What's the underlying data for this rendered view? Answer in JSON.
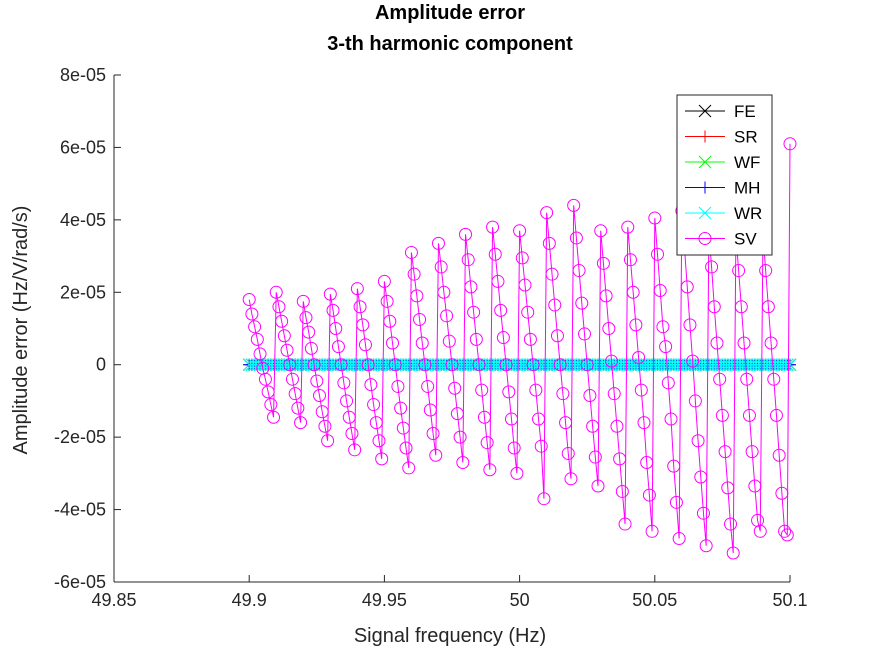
{
  "colors": {
    "FE": "#000000",
    "SR": "#ff0000",
    "WF": "#00ff00",
    "MH": "#0000ff",
    "WR": "#00ffff",
    "SV": "#ff00ff",
    "axis": "#262626",
    "background": "#ffffff"
  },
  "chart_data": {
    "type": "line",
    "title": "Amplitude error",
    "subtitle": "3-th harmonic component",
    "xlabel": "Signal frequency (Hz)",
    "ylabel": "Amplitude error (Hz/V/rad/s)",
    "xlim": [
      49.85,
      50.1
    ],
    "ylim": [
      -6e-05,
      8e-05
    ],
    "xticks": [
      "49.85",
      "49.9",
      "49.95",
      "50",
      "50.05",
      "50.1"
    ],
    "yticks": [
      "-6e-05",
      "-4e-05",
      "-2e-05",
      "0",
      "2e-05",
      "4e-05",
      "6e-05",
      "8e-05"
    ],
    "grid": false,
    "legend_position": "top-right",
    "x_range": {
      "start": 49.9,
      "end": 50.1,
      "step": 0.001
    },
    "series": [
      {
        "name": "FE",
        "marker": "x",
        "values": [
          0
        ]
      },
      {
        "name": "SR",
        "marker": "+",
        "values": [
          0
        ]
      },
      {
        "name": "WF",
        "marker": "x",
        "values": [
          0
        ]
      },
      {
        "name": "MH",
        "marker": "+",
        "values": [
          0
        ]
      },
      {
        "name": "WR",
        "marker": "x",
        "values": [
          0
        ]
      },
      {
        "name": "SV",
        "marker": "o",
        "values": [
          1.8e-05,
          1.4e-05,
          1.05e-05,
          7e-06,
          3e-06,
          -1e-06,
          -4e-06,
          -7.5e-06,
          -1.1e-05,
          -1.45e-05,
          2e-05,
          1.6e-05,
          1.2e-05,
          8e-06,
          4e-06,
          0,
          -4e-06,
          -8e-06,
          -1.2e-05,
          -1.6e-05,
          1.75e-05,
          1.3e-05,
          9e-06,
          4.5e-06,
          0,
          -4.5e-06,
          -8.5e-06,
          -1.3e-05,
          -1.7e-05,
          -2.1e-05,
          1.95e-05,
          1.5e-05,
          1e-05,
          5e-06,
          0,
          -5e-06,
          -1e-05,
          -1.45e-05,
          -1.9e-05,
          -2.35e-05,
          2.1e-05,
          1.6e-05,
          1.1e-05,
          5.5e-06,
          0,
          -5.5e-06,
          -1.1e-05,
          -1.6e-05,
          -2.1e-05,
          -2.6e-05,
          2.3e-05,
          1.75e-05,
          1.2e-05,
          6e-06,
          0,
          -6e-06,
          -1.2e-05,
          -1.75e-05,
          -2.3e-05,
          -2.85e-05,
          3.1e-05,
          2.5e-05,
          1.9e-05,
          1.25e-05,
          6e-06,
          0,
          -6e-06,
          -1.25e-05,
          -1.9e-05,
          -2.5e-05,
          3.35e-05,
          2.7e-05,
          2e-05,
          1.35e-05,
          6.5e-06,
          0,
          -6.5e-06,
          -1.35e-05,
          -2e-05,
          -2.7e-05,
          3.6e-05,
          2.9e-05,
          2.15e-05,
          1.45e-05,
          7e-06,
          0,
          -7e-06,
          -1.45e-05,
          -2.15e-05,
          -2.9e-05,
          3.8e-05,
          3.05e-05,
          2.3e-05,
          1.5e-05,
          7.5e-06,
          0,
          -7.5e-06,
          -1.5e-05,
          -2.3e-05,
          -3e-05,
          3.7e-05,
          2.95e-05,
          2.2e-05,
          1.45e-05,
          7e-06,
          0,
          -7e-06,
          -1.5e-05,
          -2.25e-05,
          -3.7e-05,
          4.2e-05,
          3.35e-05,
          2.5e-05,
          1.65e-05,
          8e-06,
          0,
          -8e-06,
          -1.6e-05,
          -2.45e-05,
          -3.15e-05,
          4.4e-05,
          3.5e-05,
          2.6e-05,
          1.7e-05,
          8.5e-06,
          0,
          -8.5e-06,
          -1.7e-05,
          -2.55e-05,
          -3.35e-05,
          3.7e-05,
          2.8e-05,
          1.9e-05,
          1e-05,
          1e-06,
          -8e-06,
          -1.7e-05,
          -2.6e-05,
          -3.5e-05,
          -4.4e-05,
          3.8e-05,
          2.9e-05,
          2e-05,
          1.1e-05,
          2e-06,
          -7e-06,
          -1.6e-05,
          -2.7e-05,
          -3.6e-05,
          -4.6e-05,
          4.05e-05,
          3.05e-05,
          2.05e-05,
          1.05e-05,
          5e-06,
          -5e-06,
          -1.5e-05,
          -2.8e-05,
          -3.8e-05,
          -4.8e-05,
          4.25e-05,
          3.2e-05,
          2.15e-05,
          1.1e-05,
          1e-06,
          -1e-05,
          -2.1e-05,
          -3.1e-05,
          -4.1e-05,
          -5e-05,
          3.7e-05,
          2.7e-05,
          1.6e-05,
          6e-06,
          -4e-06,
          -1.4e-05,
          -2.4e-05,
          -3.4e-05,
          -4.4e-05,
          -5.2e-05,
          3.6e-05,
          2.6e-05,
          1.6e-05,
          6e-06,
          -4e-06,
          -1.4e-05,
          -2.4e-05,
          -3.35e-05,
          -4.3e-05,
          -4.6e-05,
          3.6e-05,
          2.6e-05,
          1.6e-05,
          6e-06,
          -4e-06,
          -1.4e-05,
          -2.5e-05,
          -3.55e-05,
          -4.6e-05,
          -4.7e-05,
          6.1e-05,
          4.9e-05,
          3.65e-05,
          2.45e-05,
          1.25e-05,
          0
        ]
      }
    ]
  }
}
